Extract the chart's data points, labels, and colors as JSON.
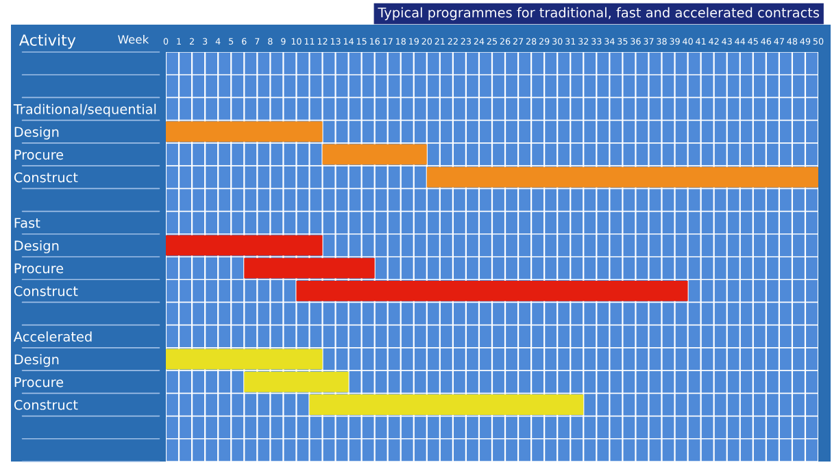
{
  "chart_data": {
    "type": "bar",
    "orientation": "horizontal",
    "title": "Typical programmes for traditional, fast and accelerated contracts",
    "xlabel": "Week",
    "ylabel": "Activity",
    "categories": [
      null,
      null,
      "Traditional/sequential",
      "Design",
      "Procure",
      "Construct",
      null,
      "Fast",
      "Design",
      "Procure",
      "Construct",
      null,
      "Accelerated",
      "Design",
      "Procure",
      "Construct",
      null,
      null
    ],
    "series": [
      {
        "color": "#f08c1e",
        "values": [
          null,
          null,
          null,
          12,
          8,
          30,
          null,
          null,
          null,
          null,
          null,
          null,
          null,
          null,
          null,
          null,
          null,
          null
        ],
        "base": [
          null,
          null,
          null,
          0,
          12,
          20,
          null,
          null,
          null,
          null,
          null,
          null,
          null,
          null,
          null,
          null,
          null,
          null
        ]
      },
      {
        "color": "#e41e0f",
        "values": [
          null,
          null,
          null,
          null,
          null,
          null,
          null,
          null,
          12,
          10,
          30,
          null,
          null,
          null,
          null,
          null,
          null,
          null
        ],
        "base": [
          null,
          null,
          null,
          null,
          null,
          null,
          null,
          null,
          0,
          6,
          10,
          null,
          null,
          null,
          null,
          null,
          null,
          null
        ]
      },
      {
        "color": "#e8e022",
        "values": [
          null,
          null,
          null,
          null,
          null,
          null,
          null,
          null,
          null,
          null,
          null,
          null,
          null,
          12,
          8,
          21,
          null,
          null
        ],
        "base": [
          null,
          null,
          null,
          null,
          null,
          null,
          null,
          null,
          null,
          null,
          null,
          null,
          null,
          0,
          6,
          11,
          null,
          null
        ]
      }
    ],
    "xlim": [
      0,
      50
    ],
    "xticks": [
      0,
      1,
      2,
      3,
      4,
      5,
      6,
      7,
      8,
      9,
      10,
      11,
      12,
      13,
      14,
      15,
      16,
      17,
      18,
      19,
      20,
      21,
      22,
      23,
      24,
      25,
      26,
      27,
      28,
      29,
      30,
      31,
      32,
      33,
      34,
      35,
      36,
      37,
      38,
      39,
      40,
      41,
      42,
      43,
      44,
      45,
      46,
      47,
      48,
      49,
      50
    ],
    "grid": true
  }
}
